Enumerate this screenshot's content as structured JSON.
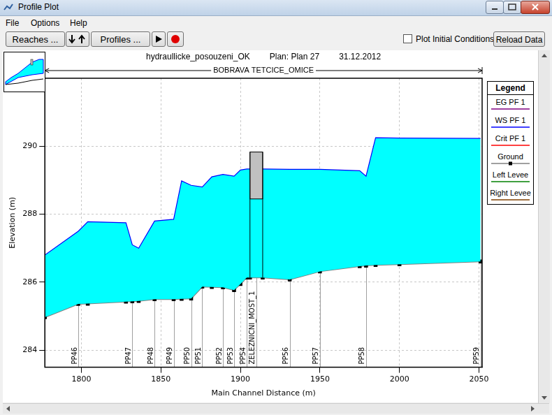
{
  "window": {
    "title": "Profile Plot",
    "menu": [
      "File",
      "Options",
      "Help"
    ],
    "buttons": [
      "Reaches ...",
      "Profiles ...",
      "Reload Data"
    ],
    "checkbox": "Plot Initial Conditions"
  },
  "chart_data": {
    "type": "line",
    "title": "hydraullicke_posouzeni_OK",
    "plan": "Plan: Plan 27",
    "date": "31.12.2012",
    "reach": "BOBRAVA TETCICE_OMICE",
    "legend_title": "Legend",
    "x_label": "Main Channel Distance (m)",
    "y_label": "Elevation (m)",
    "xlim": [
      1777,
      2052
    ],
    "xticks": [
      1800,
      1850,
      1900,
      1950,
      2000,
      2050
    ],
    "ylim": [
      283.5,
      292
    ],
    "yticks": [
      284,
      286,
      288,
      290
    ],
    "grid": true,
    "legend": "right",
    "x": [
      1777,
      1798,
      1804,
      1828,
      1832,
      1836,
      1846,
      1858,
      1863,
      1869,
      1876,
      1882,
      1889,
      1896,
      1900,
      1904,
      1906,
      1914,
      1931,
      1950,
      1975,
      1979,
      1985,
      2000,
      2051
    ],
    "series": [
      {
        "name": "EG  PF 1",
        "color": "#800080",
        "values": [
          null,
          null,
          null,
          null,
          null,
          null,
          null,
          null,
          null,
          null,
          null,
          null,
          null,
          null,
          null,
          null,
          null,
          null,
          null,
          null,
          null,
          null,
          null,
          null,
          null
        ]
      },
      {
        "name": "WS  PF 1",
        "color": "#0000ff",
        "type": "area",
        "values": [
          286.8,
          287.5,
          287.78,
          287.75,
          287.1,
          287.0,
          287.8,
          287.85,
          288.98,
          288.85,
          288.8,
          289.1,
          289.17,
          289.12,
          289.3,
          289.33,
          289.33,
          289.33,
          289.32,
          289.32,
          289.28,
          289.12,
          290.25,
          290.24,
          290.23
        ]
      },
      {
        "name": "Crit  PF 1",
        "color": "#ff0000",
        "values": [
          null,
          null,
          null,
          null,
          null,
          null,
          null,
          null,
          null,
          null,
          null,
          null,
          null,
          null,
          null,
          null,
          null,
          null,
          null,
          null,
          null,
          null,
          null,
          null,
          null
        ]
      },
      {
        "name": "Ground",
        "color": "#808080",
        "marker": "square",
        "values": [
          284.97,
          285.36,
          285.37,
          285.43,
          285.44,
          285.45,
          285.5,
          285.5,
          285.51,
          285.52,
          285.87,
          285.86,
          285.85,
          285.77,
          285.95,
          286.14,
          286.14,
          286.14,
          286.08,
          286.32,
          286.47,
          286.49,
          286.51,
          286.53,
          286.61
        ]
      },
      {
        "name": "Left Levee",
        "color": "#008000",
        "values": [
          null,
          null,
          null,
          null,
          null,
          null,
          null,
          null,
          null,
          null,
          null,
          null,
          null,
          null,
          null,
          null,
          null,
          null,
          null,
          null,
          null,
          null,
          null,
          null,
          null
        ]
      },
      {
        "name": "Right Levee",
        "color": "#804000",
        "values": [
          null,
          null,
          null,
          null,
          null,
          null,
          null,
          null,
          null,
          null,
          null,
          null,
          null,
          null,
          null,
          null,
          null,
          null,
          null,
          null,
          null,
          null,
          null,
          null,
          null
        ]
      }
    ],
    "stations": [
      {
        "name": "PP46",
        "x": 1798
      },
      {
        "name": "PP47",
        "x": 1832
      },
      {
        "name": "PP48",
        "x": 1846
      },
      {
        "name": "PP49",
        "x": 1858
      },
      {
        "name": "PP50",
        "x": 1869
      },
      {
        "name": "PP51",
        "x": 1876
      },
      {
        "name": "PP52",
        "x": 1889
      },
      {
        "name": "PP53",
        "x": 1896
      },
      {
        "name": "PP54",
        "x": 1904
      },
      {
        "name": "ZELEZNICNI_MOST_1",
        "x": 1910
      },
      {
        "name": "PP56",
        "x": 1931
      },
      {
        "name": "PP57",
        "x": 1950
      },
      {
        "name": "PP58",
        "x": 1979
      },
      {
        "name": "PP59",
        "x": 2051
      }
    ],
    "bridge": {
      "x": [
        1906,
        1914
      ],
      "low_chord": 288.45,
      "high_chord": 289.83
    }
  }
}
